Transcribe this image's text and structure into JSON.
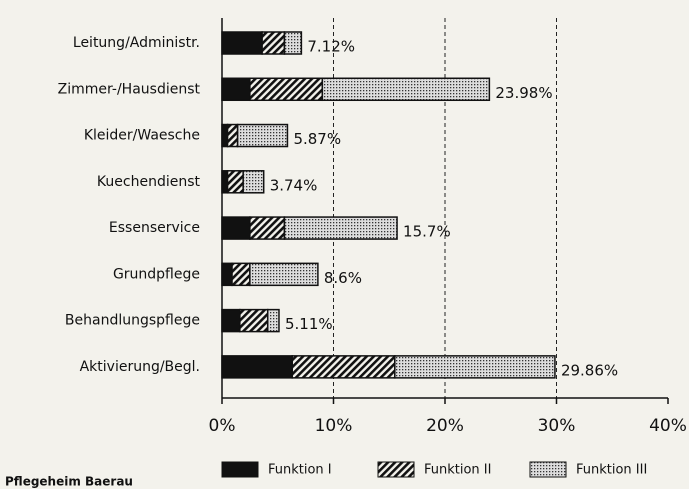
{
  "chart_data": {
    "type": "stacked-barh",
    "categories": [
      "Leitung/Administr.",
      "Zimmer-/Hausdienst",
      "Kleider/Waesche",
      "Kuechendienst",
      "Essenservice",
      "Grundpflege",
      "Behandlungspflege",
      "Aktivierung/Begl."
    ],
    "series": [
      {
        "name": "Funktion I",
        "color": "#111111",
        "pattern": "solid",
        "values": [
          3.6,
          2.5,
          0.5,
          0.5,
          2.5,
          0.9,
          1.6,
          6.3
        ]
      },
      {
        "name": "Funktion II",
        "color": "#111111",
        "pattern": "hatch",
        "values": [
          2.0,
          6.5,
          0.9,
          1.4,
          3.1,
          1.6,
          2.5,
          9.2
        ]
      },
      {
        "name": "Funktion III",
        "color": "#111111",
        "pattern": "dots",
        "values": [
          1.52,
          14.98,
          4.47,
          1.84,
          10.1,
          6.1,
          1.01,
          14.36
        ]
      }
    ],
    "totals": [
      7.12,
      23.98,
      5.87,
      3.74,
      15.7,
      8.6,
      5.11,
      29.86
    ],
    "total_labels": [
      "7.12%",
      "23.98%",
      "5.87%",
      "3.74%",
      "15.7%",
      "8.6%",
      "5.11%",
      "29.86%"
    ],
    "xlim": [
      0,
      40
    ],
    "xticks": [
      {
        "value": 0,
        "label": "0%"
      },
      {
        "value": 10,
        "label": "10%"
      },
      {
        "value": 20,
        "label": "20%"
      },
      {
        "value": 30,
        "label": "30%"
      },
      {
        "value": 40,
        "label": "40%"
      }
    ],
    "grid": true,
    "legend": "bottom",
    "footnote": "Pflegeheim Baerau"
  }
}
